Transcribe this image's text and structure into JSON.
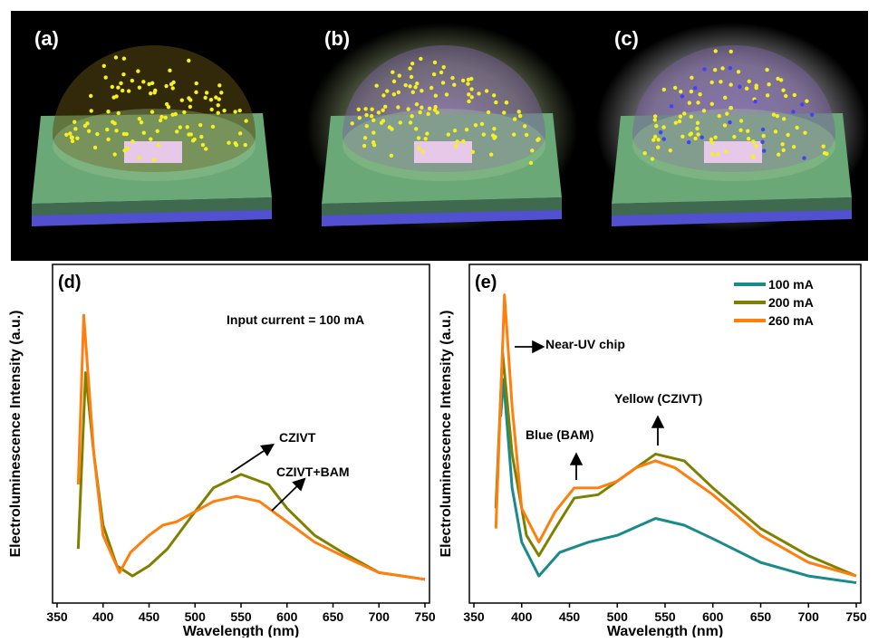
{
  "illustrations": {
    "labels": [
      "(a)",
      "(b)",
      "(c)"
    ]
  },
  "chart_data": [
    {
      "type": "line",
      "panel_label": "(d)",
      "x_label": "Wavelength (nm)",
      "y_label": "Electroluminescence Intensity (a.u.)",
      "xlim": [
        350,
        750
      ],
      "xticks": [
        350,
        400,
        450,
        500,
        550,
        600,
        650,
        700,
        750
      ],
      "ylim": [
        0,
        100
      ],
      "annotations": [
        "Input current = 100 mA",
        "CZIVT",
        "CZIVT+BAM"
      ],
      "series": [
        {
          "name": "CZIVT",
          "color": "#808000",
          "x": [
            373,
            381,
            390,
            400,
            415,
            432,
            450,
            470,
            500,
            520,
            550,
            580,
            600,
            630,
            660,
            700,
            750
          ],
          "values": [
            16,
            68,
            44,
            23,
            11,
            8,
            11,
            16,
            27,
            34,
            38,
            35,
            28,
            20,
            15,
            9,
            7
          ]
        },
        {
          "name": "CZIVT+BAM",
          "color": "#ff7f0e",
          "x": [
            373,
            379,
            390,
            400,
            418,
            430,
            450,
            465,
            480,
            500,
            520,
            545,
            570,
            600,
            630,
            660,
            700,
            750
          ],
          "values": [
            35,
            85,
            44,
            20,
            9,
            15,
            20,
            23,
            24,
            27,
            30,
            31.5,
            30,
            24,
            18,
            14,
            9,
            7
          ]
        }
      ]
    },
    {
      "type": "line",
      "panel_label": "(e)",
      "x_label": "Wavelength (nm)",
      "y_label": "Electroluminescence Intensity (a.u.)",
      "xlim": [
        350,
        750
      ],
      "xticks": [
        350,
        400,
        450,
        500,
        550,
        600,
        650,
        700,
        750
      ],
      "ylim": [
        0,
        100
      ],
      "legend": "upper right",
      "annotations": [
        "Near-UV chip",
        "Blue (BAM)",
        "Yellow (CZIVT)"
      ],
      "series": [
        {
          "name": "100 mA",
          "color": "#1a8a8a",
          "x": [
            378,
            381,
            390,
            400,
            418,
            440,
            470,
            500,
            540,
            570,
            600,
            650,
            700,
            750
          ],
          "values": [
            55,
            66,
            34,
            18,
            8,
            15,
            18,
            20,
            25,
            23,
            19,
            12,
            8,
            6
          ]
        },
        {
          "name": "200 mA",
          "color": "#808000",
          "x": [
            373,
            380,
            390,
            405,
            418,
            435,
            455,
            480,
            510,
            540,
            570,
            600,
            650,
            700,
            750
          ],
          "values": [
            28,
            74,
            44,
            20,
            14,
            22,
            31,
            32,
            38,
            44,
            42,
            34,
            22,
            14,
            8
          ]
        },
        {
          "name": "260 mA",
          "color": "#ff7f0e",
          "x": [
            373,
            382,
            390,
            400,
            418,
            435,
            455,
            480,
            500,
            520,
            540,
            560,
            600,
            650,
            700,
            750
          ],
          "values": [
            22,
            91,
            58,
            28,
            18,
            27,
            34,
            34,
            36,
            40,
            42,
            40,
            32,
            20,
            12,
            8
          ]
        }
      ]
    }
  ]
}
